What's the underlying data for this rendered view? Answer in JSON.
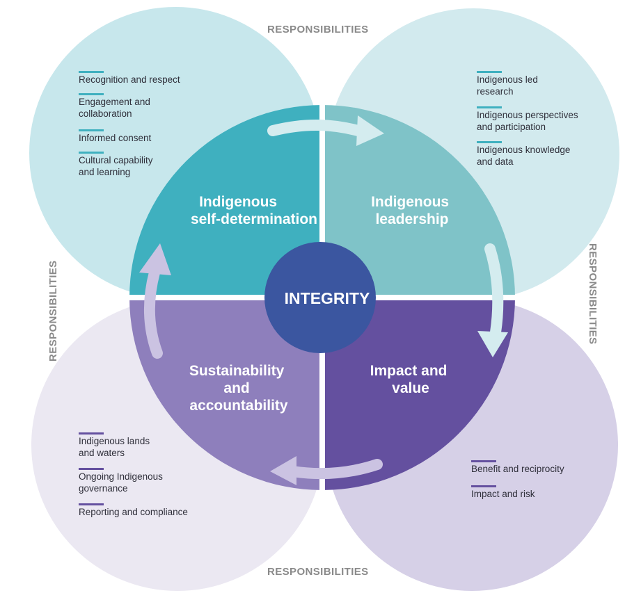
{
  "colors": {
    "circle_tl": "#c7e7ec",
    "circle_tr": "#d2eaee",
    "circle_bl": "#ebe8f2",
    "circle_br": "#d6d0e7",
    "quad_tl": "#3fb0bf",
    "quad_tr": "#7fc3c8",
    "quad_bl": "#8e7fbc",
    "quad_br": "#64509f",
    "center": "#3b56a0",
    "bar_teal": "#3fb0bf",
    "bar_purple": "#64509f",
    "arrow_top": "#d4ecef",
    "arrow_bottom": "#cbc3e2"
  },
  "labels": {
    "responsibilities_top": "RESPONSIBILITIES",
    "responsibilities_bottom": "RESPONSIBILITIES",
    "responsibilities_left": "RESPONSIBILITIES",
    "responsibilities_right": "RESPONSIBILITIES",
    "center": "INTEGRITY"
  },
  "quadrants": {
    "top_left": {
      "title": [
        "Indigenous",
        "self-determination"
      ]
    },
    "top_right": {
      "title": [
        "Indigenous",
        "leadership"
      ]
    },
    "bottom_left": {
      "title": [
        "Sustainability",
        "and",
        "accountability"
      ]
    },
    "bottom_right": {
      "title": [
        "Impact and",
        "value"
      ]
    }
  },
  "responsibilities": {
    "top_left": [
      [
        "Recognition and respect"
      ],
      [
        "Engagement and",
        "collaboration"
      ],
      [
        "Informed consent"
      ],
      [
        "Cultural capability",
        "and learning"
      ]
    ],
    "top_right": [
      [
        "Indigenous led",
        "research"
      ],
      [
        "Indigenous perspectives",
        "and participation"
      ],
      [
        "Indigenous knowledge",
        "and data"
      ]
    ],
    "bottom_left": [
      [
        "Indigenous lands",
        "and waters"
      ],
      [
        "Ongoing Indigenous",
        "governance"
      ],
      [
        "Reporting and compliance"
      ]
    ],
    "bottom_right": [
      [
        "Benefit and reciprocity"
      ],
      [
        "Impact and risk"
      ]
    ]
  }
}
